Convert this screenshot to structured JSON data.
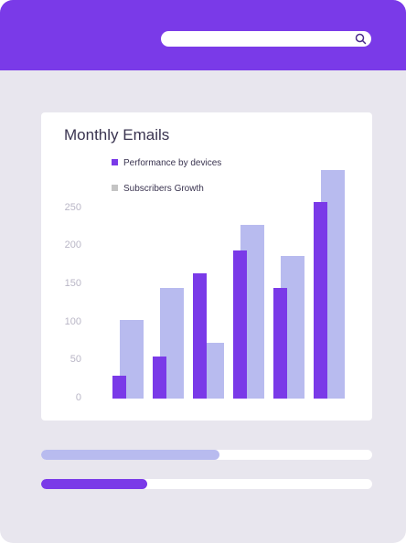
{
  "header": {
    "search": {
      "icon": "search-icon"
    }
  },
  "colors": {
    "accent": "#7a3ae8",
    "series_primary": "#7a3ae8",
    "series_secondary": "#b8bbef",
    "legend_secondary_swatch": "#c4c4c4"
  },
  "chart_data": {
    "type": "bar",
    "title": "Monthly Emails",
    "xlabel": "",
    "ylabel": "",
    "ylim": [
      0,
      300
    ],
    "yticks": [
      0,
      50,
      100,
      150,
      200,
      250
    ],
    "legend_position": "top",
    "categories": [
      "",
      "",
      "",
      "",
      "",
      ""
    ],
    "series": [
      {
        "name": "Performance by devices",
        "values": [
          30,
          55,
          165,
          195,
          145,
          258
        ]
      },
      {
        "name": "Subscribers Growth",
        "values": [
          103,
          145,
          73,
          228,
          187,
          303
        ]
      }
    ]
  },
  "progress_bars": [
    {
      "value": 0.54,
      "color": "#b8bbef"
    },
    {
      "value": 0.32,
      "color": "#7a3ae8"
    }
  ]
}
